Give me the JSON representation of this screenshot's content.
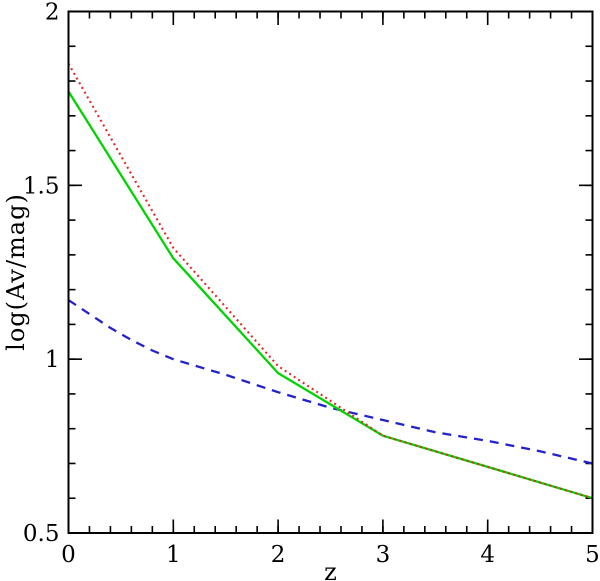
{
  "figure": {
    "background": "#ffffff",
    "frame_color": "#000000",
    "text_color": "#000000"
  },
  "chart_data": {
    "type": "line",
    "title": "",
    "xlabel": "z",
    "ylabel": "log(Av/mag)",
    "xlim": [
      0,
      5
    ],
    "ylim": [
      0.5,
      2.0
    ],
    "grid": false,
    "legend": null,
    "x_ticks": [
      {
        "value": 0,
        "label": "0"
      },
      {
        "value": 1,
        "label": "1"
      },
      {
        "value": 2,
        "label": "2"
      },
      {
        "value": 3,
        "label": "3"
      },
      {
        "value": 4,
        "label": "4"
      },
      {
        "value": 5,
        "label": "5"
      }
    ],
    "x_minor_step": 0.2,
    "y_ticks": [
      {
        "value": 0.5,
        "label": "0.5"
      },
      {
        "value": 1.0,
        "label": "1"
      },
      {
        "value": 1.5,
        "label": "1.5"
      },
      {
        "value": 2.0,
        "label": "2"
      }
    ],
    "y_minor_step": 0.1,
    "series": [
      {
        "name": "dashed-blue-curve",
        "style": "dashed",
        "color": "#2323cc",
        "x": [
          0,
          0.2,
          0.4,
          0.6,
          0.8,
          1.0,
          1.5,
          2.0,
          2.5,
          3.0,
          3.5,
          4.0,
          4.5,
          5.0
        ],
        "y": [
          1.17,
          1.13,
          1.09,
          1.055,
          1.025,
          1.0,
          0.955,
          0.905,
          0.86,
          0.825,
          0.79,
          0.765,
          0.735,
          0.7
        ]
      },
      {
        "name": "solid-green-curve",
        "style": "solid",
        "color": "#00d400",
        "x": [
          0,
          1,
          2,
          3,
          4,
          5
        ],
        "y": [
          1.77,
          1.29,
          0.96,
          0.78,
          0.69,
          0.6
        ]
      },
      {
        "name": "dotted-red-curve",
        "style": "dotted",
        "color": "#e02a2a",
        "x": [
          0,
          1,
          2,
          3,
          4,
          5
        ],
        "y": [
          1.85,
          1.32,
          0.98,
          0.78,
          0.69,
          0.6
        ]
      }
    ],
    "crossing_note": "dotted and solid curves merge for z >= 3; dashed curve crosses them near z = 2.6"
  }
}
